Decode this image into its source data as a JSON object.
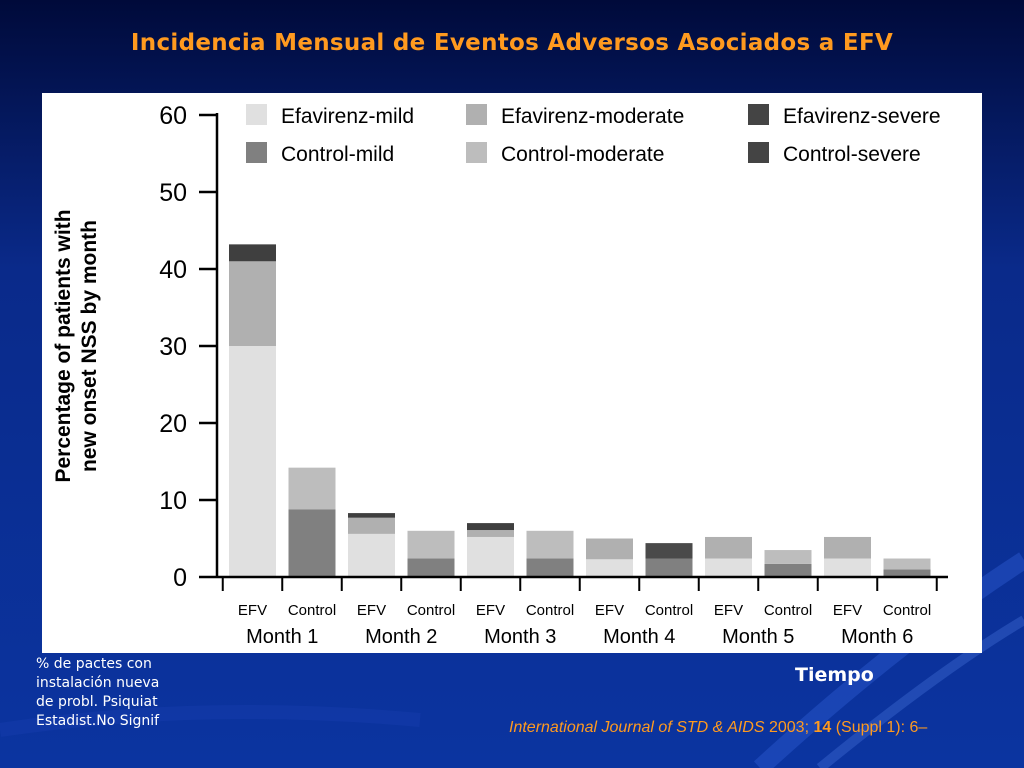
{
  "slide": {
    "title": "Incidencia Mensual de Eventos Adversos Asociados a EFV",
    "side_note_lines": [
      "% de pactes con",
      "instalación nueva",
      "de probl. Psiquiat",
      "Estadist.No Signif"
    ],
    "x_caption": "Tiempo",
    "citation": {
      "journal": "International Journal of STD & AIDS",
      "year": " 2003; ",
      "volume": "14",
      "rest": " (Suppl 1): 6–"
    }
  },
  "chart_data": {
    "type": "bar",
    "stacked": true,
    "ylabel_lines": [
      "Percentage of patients with",
      "new onset NSS by month"
    ],
    "ylim": [
      0,
      60
    ],
    "yticks": [
      0,
      10,
      20,
      30,
      40,
      50,
      60
    ],
    "grid": false,
    "legend_position": "top",
    "groups": [
      "Month 1",
      "Month 2",
      "Month 3",
      "Month 4",
      "Month 5",
      "Month 6"
    ],
    "categories": [
      "EFV",
      "Control",
      "EFV",
      "Control",
      "EFV",
      "Control",
      "EFV",
      "Control",
      "EFV",
      "Control",
      "EFV",
      "Control"
    ],
    "legend": [
      {
        "name": "Efavirenz-mild",
        "color": "#e0e0e0"
      },
      {
        "name": "Efavirenz-moderate",
        "color": "#b0b0b0"
      },
      {
        "name": "Efavirenz-severe",
        "color": "#444444"
      },
      {
        "name": "Control-mild",
        "color": "#808080"
      },
      {
        "name": "Control-moderate",
        "color": "#bdbdbd"
      },
      {
        "name": "Control-severe",
        "color": "#444444"
      }
    ],
    "bars": [
      {
        "arm": "EFV",
        "month": "Month 1",
        "segments": [
          {
            "level": "mild",
            "value": 30,
            "color": "#e0e0e0"
          },
          {
            "level": "moderate",
            "value": 11,
            "color": "#b0b0b0"
          },
          {
            "level": "severe",
            "value": 2.2,
            "color": "#3f3f3f"
          }
        ]
      },
      {
        "arm": "Control",
        "month": "Month 1",
        "segments": [
          {
            "level": "mild",
            "value": 8.8,
            "color": "#808080"
          },
          {
            "level": "moderate",
            "value": 5.4,
            "color": "#bdbdbd"
          }
        ]
      },
      {
        "arm": "EFV",
        "month": "Month 2",
        "segments": [
          {
            "level": "mild",
            "value": 5.6,
            "color": "#e0e0e0"
          },
          {
            "level": "moderate",
            "value": 2.1,
            "color": "#b0b0b0"
          },
          {
            "level": "severe",
            "value": 0.6,
            "color": "#3f3f3f"
          }
        ]
      },
      {
        "arm": "Control",
        "month": "Month 2",
        "segments": [
          {
            "level": "mild",
            "value": 2.4,
            "color": "#808080"
          },
          {
            "level": "moderate",
            "value": 3.6,
            "color": "#bdbdbd"
          }
        ]
      },
      {
        "arm": "EFV",
        "month": "Month 3",
        "segments": [
          {
            "level": "mild",
            "value": 5.2,
            "color": "#e0e0e0"
          },
          {
            "level": "moderate",
            "value": 0.9,
            "color": "#b0b0b0"
          },
          {
            "level": "severe",
            "value": 0.9,
            "color": "#3f3f3f"
          }
        ]
      },
      {
        "arm": "Control",
        "month": "Month 3",
        "segments": [
          {
            "level": "mild",
            "value": 2.4,
            "color": "#808080"
          },
          {
            "level": "moderate",
            "value": 3.6,
            "color": "#bdbdbd"
          }
        ]
      },
      {
        "arm": "EFV",
        "month": "Month 4",
        "segments": [
          {
            "level": "mild",
            "value": 2.3,
            "color": "#e0e0e0"
          },
          {
            "level": "moderate",
            "value": 2.7,
            "color": "#b0b0b0"
          }
        ]
      },
      {
        "arm": "Control",
        "month": "Month 4",
        "segments": [
          {
            "level": "mild",
            "value": 2.4,
            "color": "#808080"
          },
          {
            "level": "severe",
            "value": 2.0,
            "color": "#4a4a4a"
          }
        ]
      },
      {
        "arm": "EFV",
        "month": "Month 5",
        "segments": [
          {
            "level": "mild",
            "value": 2.4,
            "color": "#e0e0e0"
          },
          {
            "level": "moderate",
            "value": 2.8,
            "color": "#b0b0b0"
          }
        ]
      },
      {
        "arm": "Control",
        "month": "Month 5",
        "segments": [
          {
            "level": "mild",
            "value": 1.7,
            "color": "#808080"
          },
          {
            "level": "moderate",
            "value": 1.8,
            "color": "#bdbdbd"
          }
        ]
      },
      {
        "arm": "EFV",
        "month": "Month 6",
        "segments": [
          {
            "level": "mild",
            "value": 2.4,
            "color": "#e0e0e0"
          },
          {
            "level": "moderate",
            "value": 2.8,
            "color": "#b0b0b0"
          }
        ]
      },
      {
        "arm": "Control",
        "month": "Month 6",
        "segments": [
          {
            "level": "mild",
            "value": 1.0,
            "color": "#808080"
          },
          {
            "level": "moderate",
            "value": 1.4,
            "color": "#bdbdbd"
          }
        ]
      }
    ]
  }
}
